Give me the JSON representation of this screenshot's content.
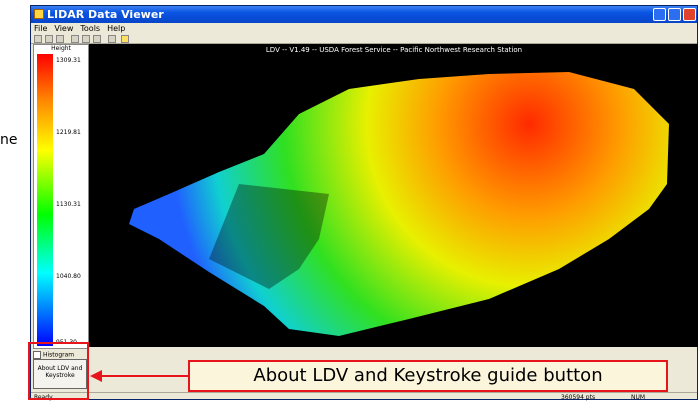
{
  "left_fragment": "ne",
  "window": {
    "title": "LIDAR Data Viewer",
    "menu": [
      "File",
      "View",
      "Tools",
      "Help"
    ],
    "colorbar": {
      "label": "Height",
      "ticks": [
        "1309.31",
        "1219.81",
        "1130.31",
        "1040.80",
        "951.30"
      ]
    },
    "viewer_caption": "LDV -- V1.49 -- USDA Forest Service -- Pacific Northwest Research Station",
    "histogram_checkbox": "Histogram",
    "about_button": "About LDV and Keystroke",
    "status": {
      "left": "Ready",
      "points": "360594 pts",
      "num": "NUM"
    }
  },
  "annotation": {
    "callout": "About LDV and Keystroke guide button"
  }
}
